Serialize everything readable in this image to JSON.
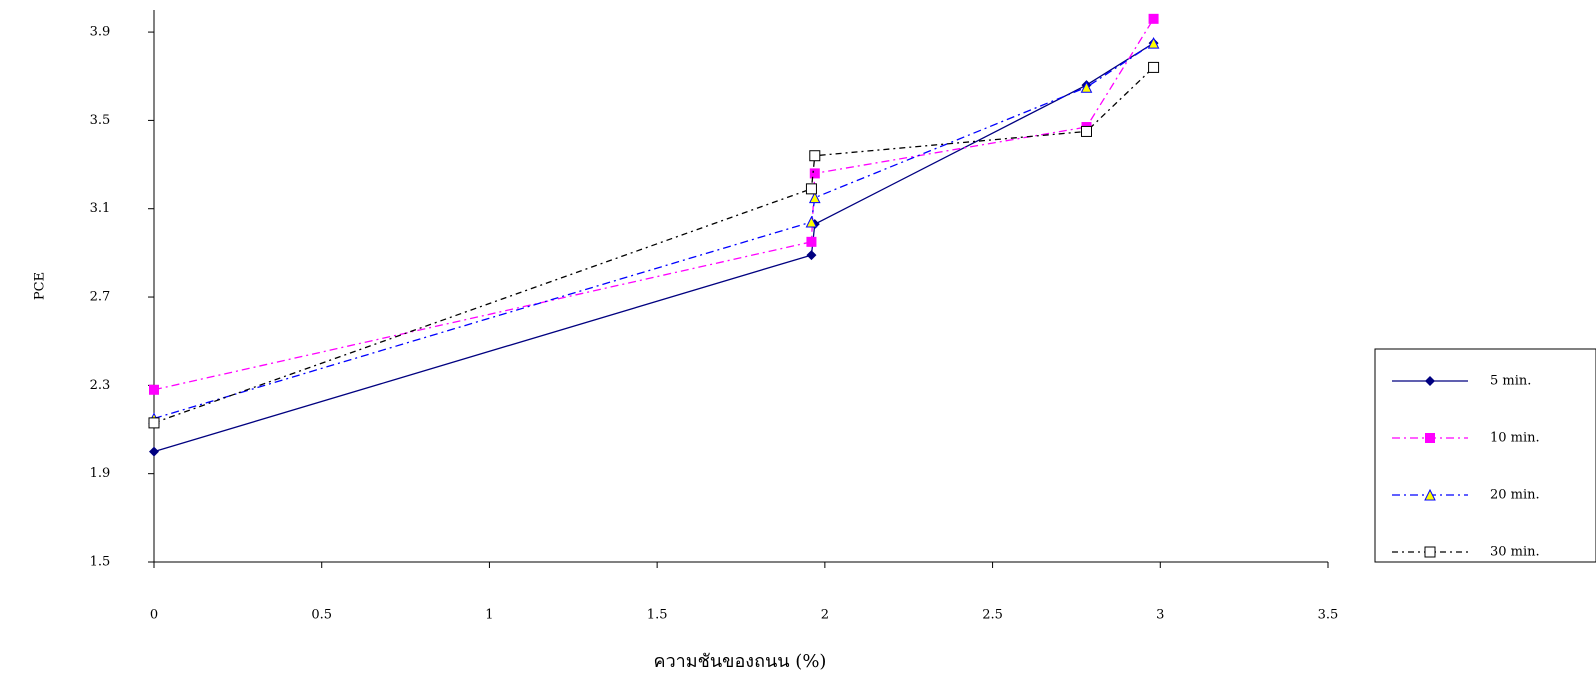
{
  "chart_data": {
    "type": "line",
    "x": [
      0,
      1.96,
      1.97,
      2.78,
      2.98
    ],
    "x_label": "ความชันของถนน (%)",
    "y_label": "PCE",
    "xlim": [
      0,
      3.5
    ],
    "xticks": [
      0,
      0.5,
      1,
      1.5,
      2,
      2.5,
      3,
      3.5
    ],
    "ylim": [
      1.5,
      4.0
    ],
    "yticks": [
      1.5,
      1.9,
      2.3,
      2.7,
      3.1,
      3.5,
      3.9
    ],
    "legend": "right",
    "series": [
      {
        "name": "5 min.",
        "color": "#000080",
        "values": [
          2.0,
          2.89,
          3.03,
          3.66,
          3.85
        ]
      },
      {
        "name": "10 min.",
        "color": "#ff00ff",
        "values": [
          2.28,
          2.95,
          3.26,
          3.47,
          3.96
        ]
      },
      {
        "name": "20 min.",
        "color": "#0000ff",
        "values": [
          2.15,
          3.04,
          3.15,
          3.65,
          3.85
        ]
      },
      {
        "name": "30 min.",
        "color": "#000000",
        "values": [
          2.13,
          3.19,
          3.34,
          3.45,
          3.74
        ]
      }
    ]
  }
}
